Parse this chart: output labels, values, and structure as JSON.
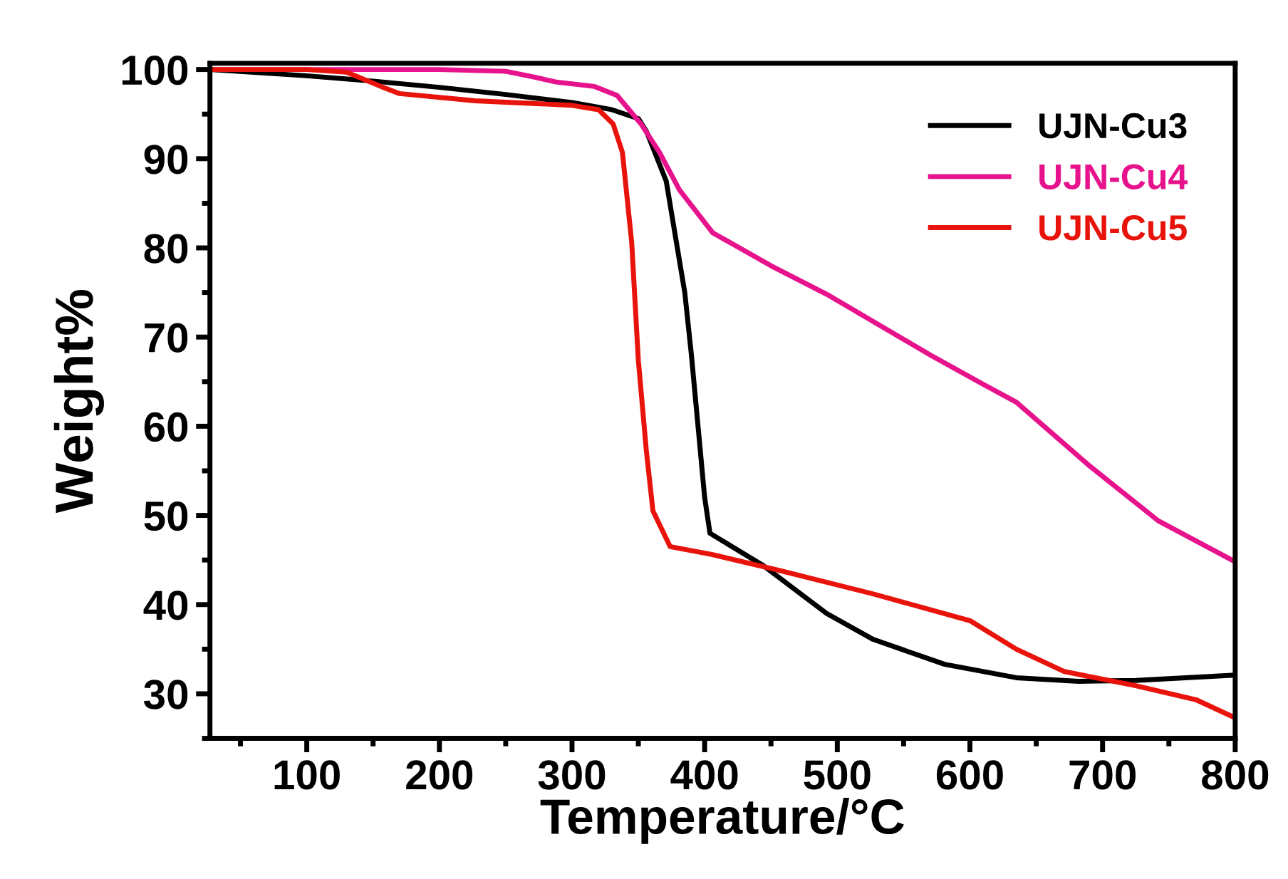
{
  "chart_data": {
    "type": "line",
    "xlabel": "Temperature/°C",
    "ylabel": "Weight%",
    "xlim": [
      27,
      800
    ],
    "ylim": [
      25,
      100.7
    ],
    "xticks": [
      100,
      200,
      300,
      400,
      500,
      600,
      700,
      800
    ],
    "yticks": [
      30,
      40,
      50,
      60,
      70,
      80,
      90,
      100
    ],
    "grid": false,
    "legend": "top right",
    "marker": "none",
    "line_style": "solid",
    "series": [
      {
        "name": "UJN-Cu3",
        "color": "#000000",
        "x": [
          27,
          100,
          150,
          200,
          250,
          300,
          330,
          350,
          356,
          371,
          385,
          390,
          395,
          400,
          404,
          444,
          492,
          527,
          581,
          635,
          682,
          725,
          800
        ],
        "values": [
          100,
          99.3,
          98.7,
          98,
          97.2,
          96.3,
          95.5,
          94.5,
          93.1,
          87.5,
          75,
          68,
          60,
          52,
          48,
          44.4,
          39,
          36.1,
          33.3,
          31.8,
          31.4,
          31.5,
          32.1
        ]
      },
      {
        "name": "UJN-Cu4",
        "color": "#e6138c",
        "x": [
          27,
          100,
          200,
          250,
          270,
          288,
          317,
          334,
          352,
          366,
          381,
          406,
          450,
          492,
          570,
          610,
          635,
          689,
          742,
          800
        ],
        "values": [
          100,
          100,
          100,
          99.8,
          99.2,
          98.6,
          98.1,
          97.1,
          93.9,
          90.7,
          86.5,
          81.7,
          78,
          74.8,
          68,
          64.7,
          62.7,
          55.7,
          49.4,
          44.8
        ]
      },
      {
        "name": "UJN-Cu5",
        "color": "#e8140c",
        "x": [
          27,
          100,
          130,
          156,
          170,
          227,
          299,
          320,
          331,
          338,
          345,
          350,
          356,
          361,
          374,
          406,
          457,
          527,
          600,
          635,
          671,
          725,
          771,
          800
        ],
        "values": [
          100,
          100,
          99.7,
          98.1,
          97.3,
          96.5,
          96,
          95.5,
          93.9,
          90.7,
          80.6,
          67.4,
          57.3,
          50.5,
          46.5,
          45.6,
          43.8,
          41.2,
          38.2,
          35,
          32.5,
          30.9,
          29.3,
          27.3
        ]
      }
    ]
  }
}
